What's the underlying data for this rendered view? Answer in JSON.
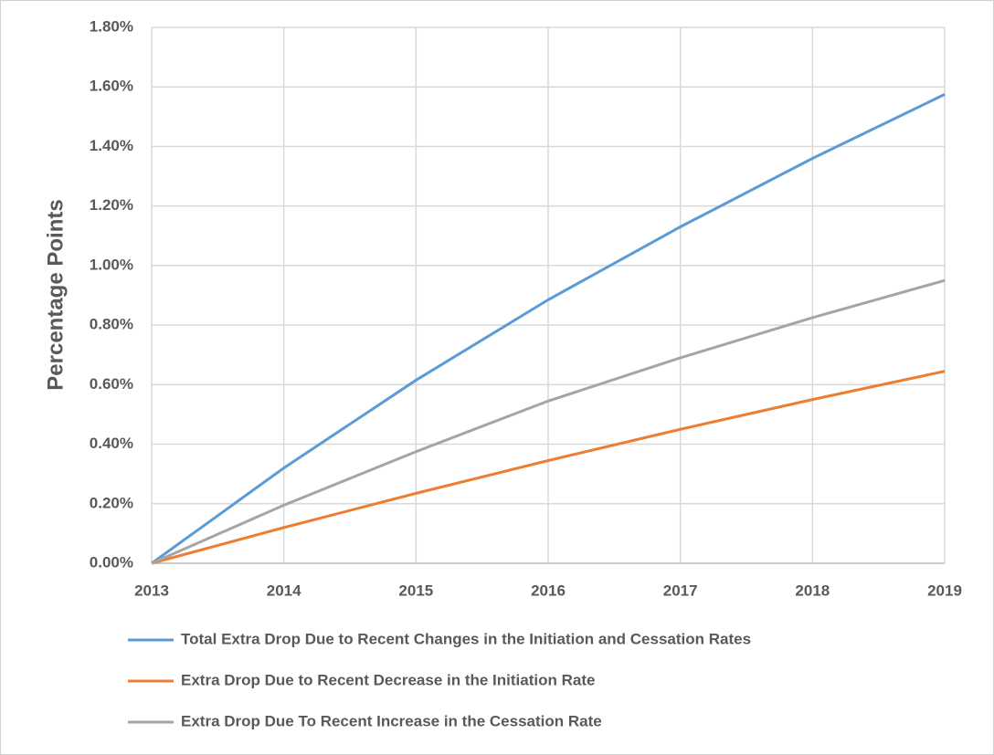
{
  "chart_data": {
    "type": "line",
    "y_label": "Percentage Points",
    "x": [
      2013,
      2014,
      2015,
      2016,
      2017,
      2018,
      2019
    ],
    "xlim": [
      2013,
      2019
    ],
    "xticks": [
      2013,
      2014,
      2015,
      2016,
      2017,
      2018,
      2019
    ],
    "ylim": [
      0,
      1.8
    ],
    "yticks": [
      {
        "value": 0,
        "label": "0.00%"
      },
      {
        "value": 0.2,
        "label": "0.20%"
      },
      {
        "value": 0.4,
        "label": "0.40%"
      },
      {
        "value": 0.6,
        "label": "0.60%"
      },
      {
        "value": 0.8,
        "label": "0.80%"
      },
      {
        "value": 1.0,
        "label": "1.00%"
      },
      {
        "value": 1.2,
        "label": "1.20%"
      },
      {
        "value": 1.4,
        "label": "1.40%"
      },
      {
        "value": 1.6,
        "label": "1.60%"
      },
      {
        "value": 1.8,
        "label": "1.80%"
      }
    ],
    "grid": true,
    "legend": "bottom",
    "series": [
      {
        "name": "Total Extra Drop Due to Recent Changes in the Initiation and Cessation Rates",
        "color": "#5b9bd5",
        "values": [
          0,
          0.32,
          0.615,
          0.885,
          1.13,
          1.36,
          1.575
        ]
      },
      {
        "name": "Extra Drop Due to Recent Decrease in the Initiation Rate",
        "color": "#ed7d31",
        "values": [
          0,
          0.12,
          0.235,
          0.345,
          0.45,
          0.55,
          0.645
        ]
      },
      {
        "name": "Extra Drop Due To Recent Increase in the Cessation Rate",
        "color": "#a5a5a5",
        "values": [
          0,
          0.195,
          0.375,
          0.545,
          0.69,
          0.825,
          0.95
        ]
      }
    ]
  }
}
